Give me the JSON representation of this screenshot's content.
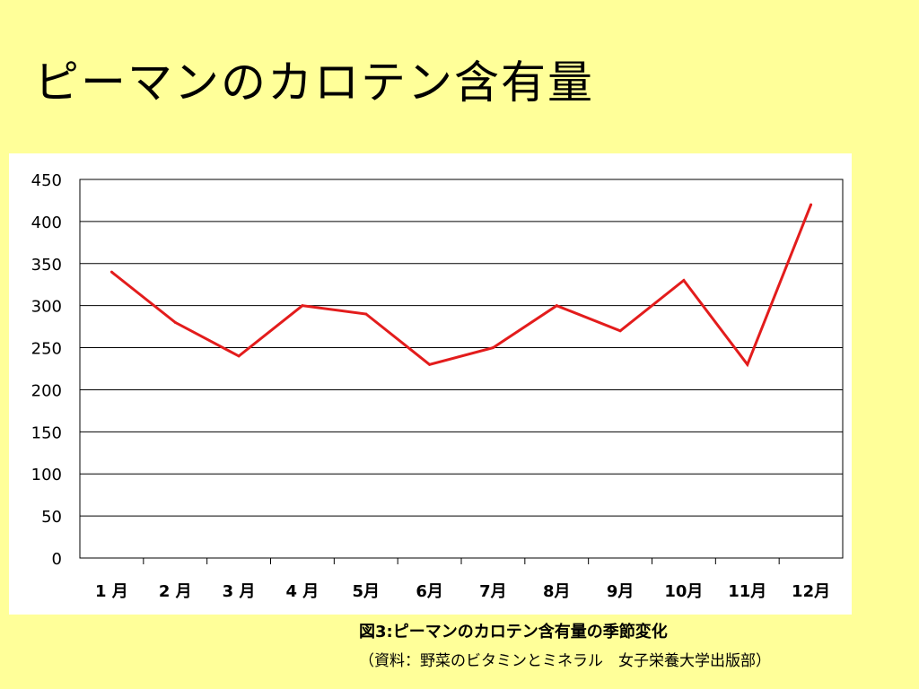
{
  "slide": {
    "title": "ピーマンのカロテン含有量",
    "caption_title": "図3:ピーマンのカロテン含有量の季節変化",
    "caption_source": "（資料：野菜のビタミンとミネラル　女子栄養大学出版部）"
  },
  "colors": {
    "background": "#ffff99",
    "plot_background": "#ffffff",
    "series_line": "#e31c1c",
    "gridline": "#000000"
  },
  "chart_data": {
    "type": "line",
    "title": "",
    "xlabel": "",
    "ylabel": "",
    "categories": [
      "1 月",
      "2 月",
      "3 月",
      "4 月",
      "5月",
      "6月",
      "7月",
      "8月",
      "9月",
      "10月",
      "11月",
      "12月"
    ],
    "series": [
      {
        "values": [
          340,
          280,
          240,
          300,
          290,
          230,
          250,
          300,
          270,
          330,
          230,
          420
        ]
      }
    ],
    "ylim": [
      0,
      450
    ],
    "yticks": [
      0,
      50,
      100,
      150,
      200,
      250,
      300,
      350,
      400,
      450
    ],
    "grid": true,
    "legend": "none"
  }
}
